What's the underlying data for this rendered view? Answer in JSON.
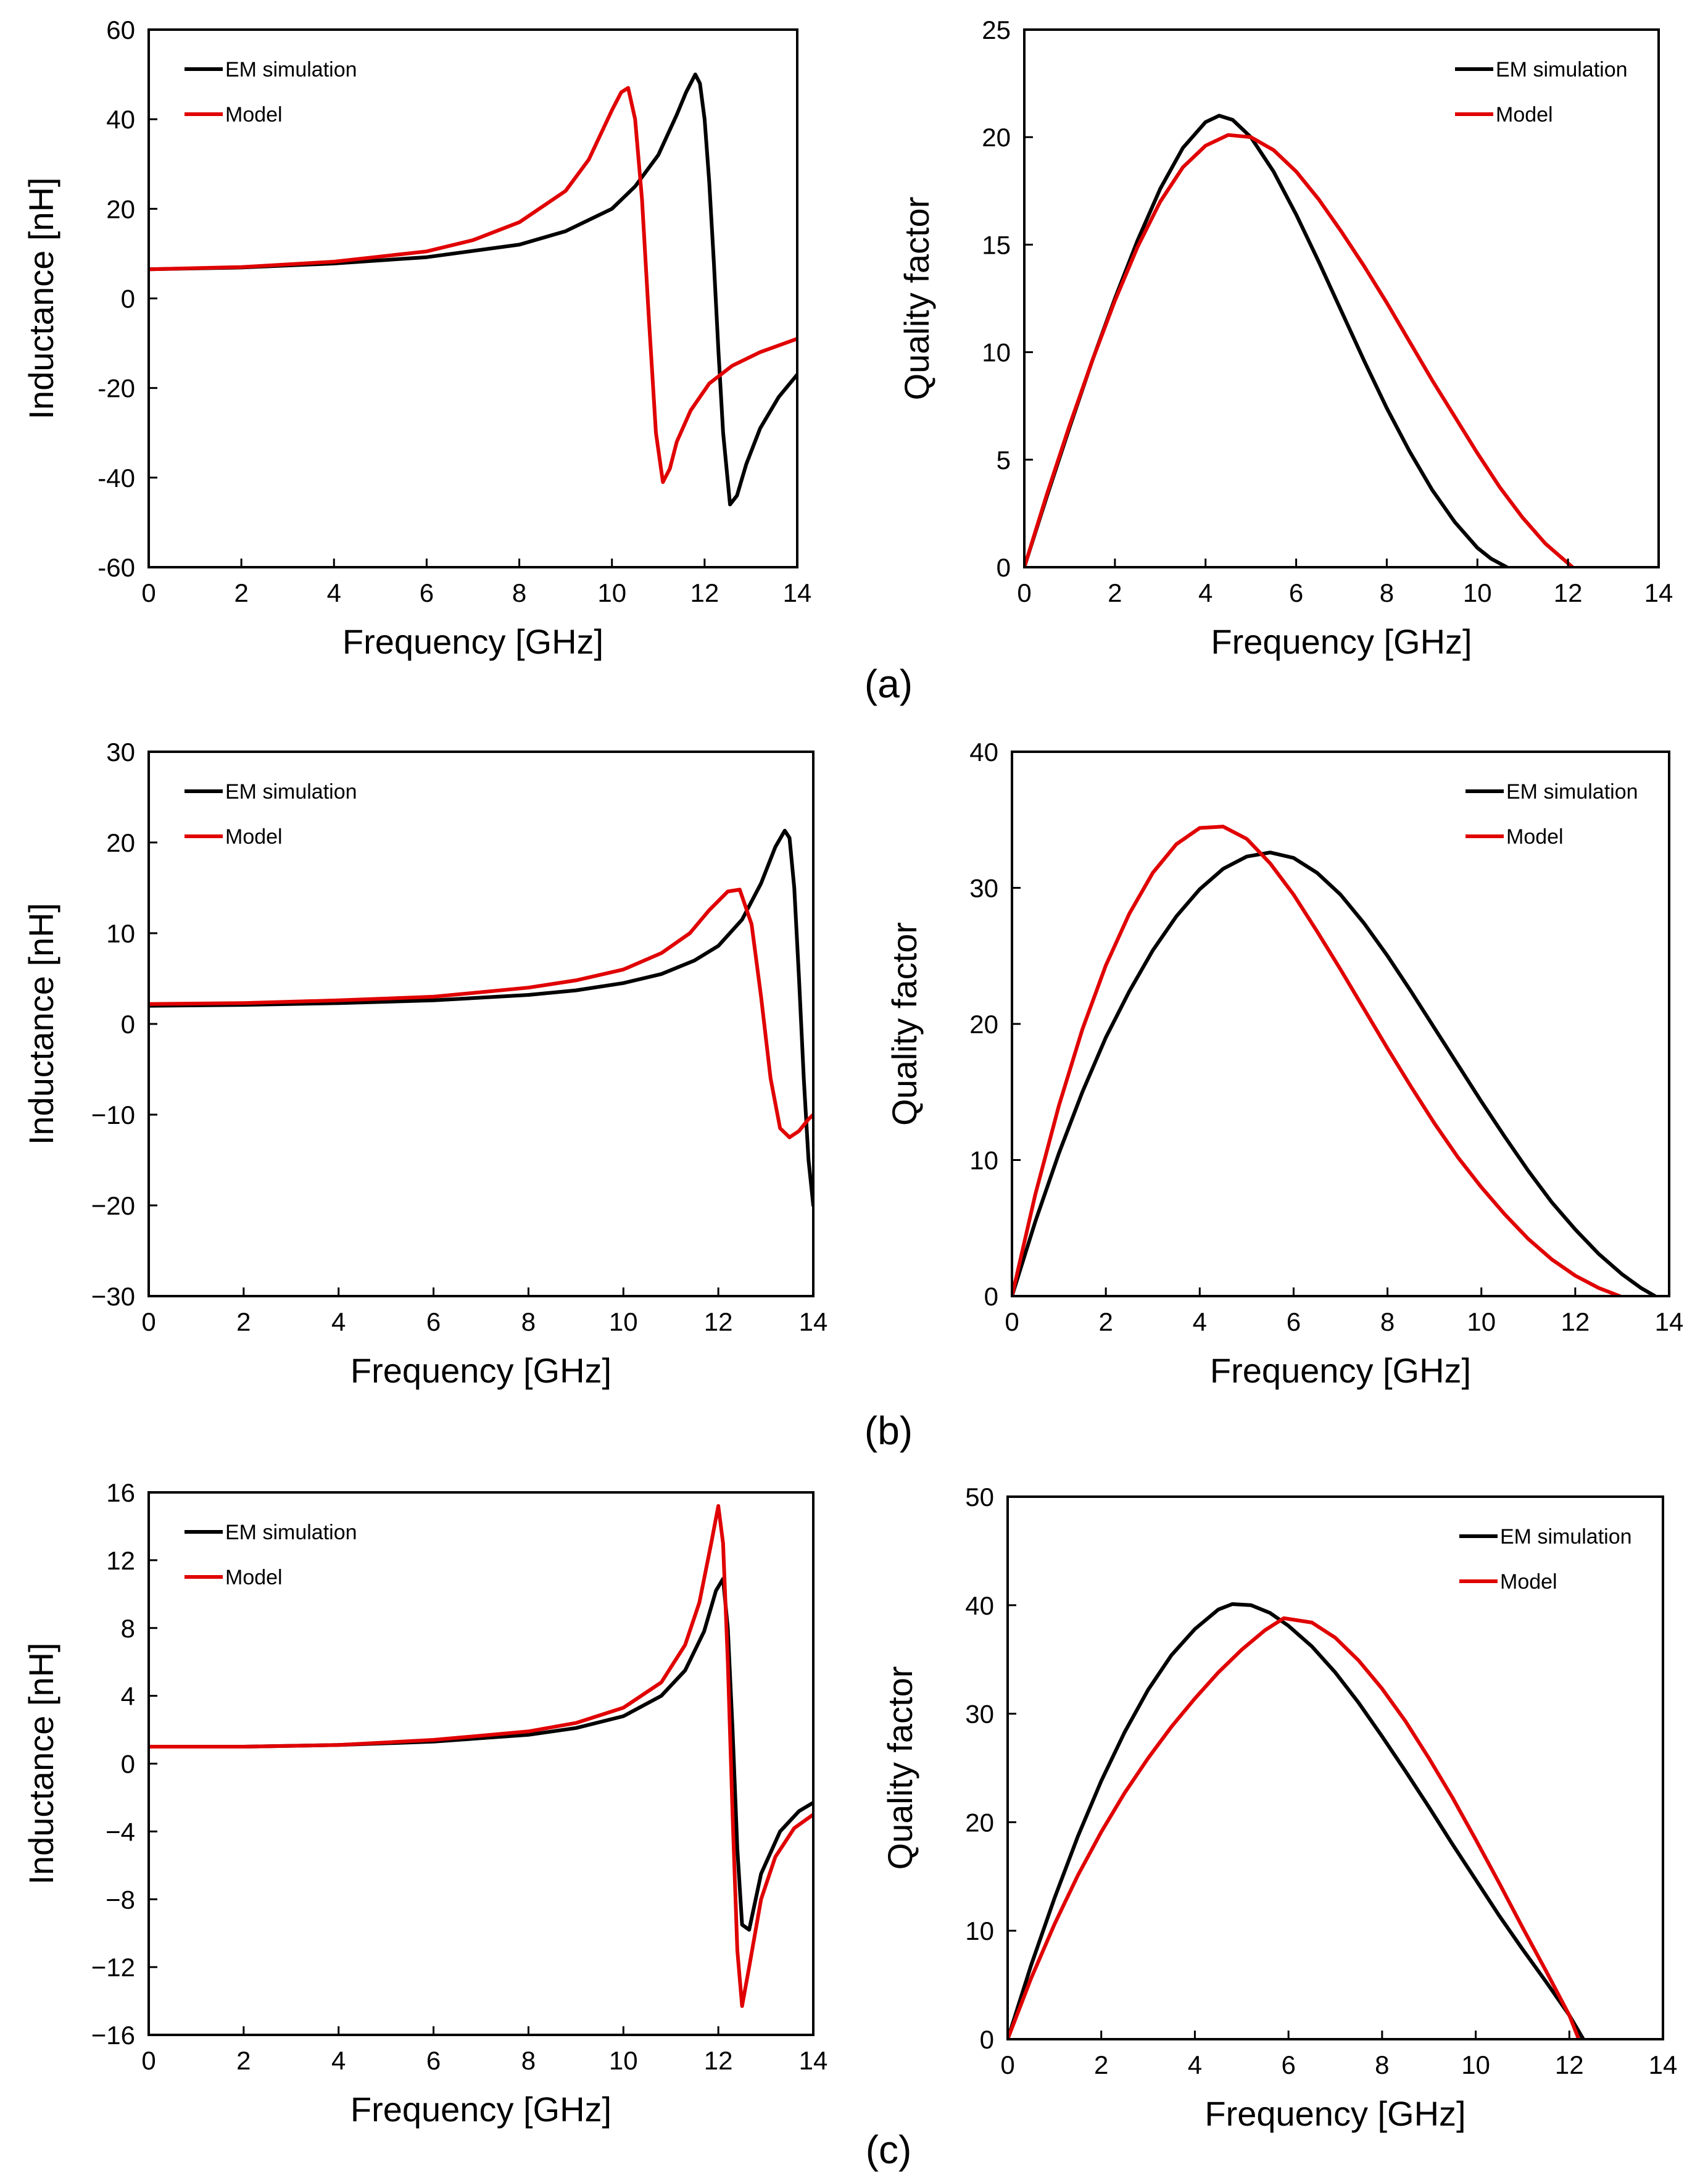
{
  "chart_data": [
    {
      "type": "line",
      "panel": "a",
      "title": "",
      "xlabel": "Frequency [GHz]",
      "ylabel": "Inductance [nH]",
      "xlim": [
        0,
        14
      ],
      "ylim": [
        -60,
        60
      ],
      "xticks": [
        0,
        2,
        4,
        6,
        8,
        10,
        12,
        14
      ],
      "yticks": [
        -60,
        -40,
        -20,
        0,
        20,
        40,
        60
      ],
      "ytick_labels": [
        "-60",
        "-40",
        "-20",
        "0",
        "20",
        "40",
        "60"
      ],
      "legend_position": "top-left",
      "series": [
        {
          "name": "EM simulation",
          "color": "#000000",
          "x": [
            0,
            2,
            4,
            6,
            8,
            9,
            10,
            10.5,
            11,
            11.4,
            11.6,
            11.8,
            11.9,
            12.0,
            12.1,
            12.2,
            12.3,
            12.4,
            12.55,
            12.7,
            12.9,
            13.2,
            13.6,
            14
          ],
          "y": [
            6.5,
            6.9,
            7.8,
            9.2,
            12,
            15,
            20,
            25,
            32,
            41,
            46,
            50,
            48,
            40,
            26,
            8,
            -12,
            -30,
            -46,
            -44,
            -37,
            -29,
            -22,
            -17
          ]
        },
        {
          "name": "Model",
          "color": "#e00000",
          "x": [
            0,
            2,
            4,
            6,
            7,
            8,
            9,
            9.5,
            10,
            10.2,
            10.35,
            10.5,
            10.65,
            10.8,
            10.95,
            11.1,
            11.25,
            11.4,
            11.7,
            12.1,
            12.6,
            13.2,
            14
          ],
          "y": [
            6.5,
            7,
            8.2,
            10.5,
            13,
            17,
            24,
            31,
            42,
            46,
            47,
            40,
            22,
            -5,
            -30,
            -41,
            -38,
            -32,
            -25,
            -19,
            -15,
            -12,
            -9
          ]
        }
      ]
    },
    {
      "type": "line",
      "panel": "a",
      "title": "",
      "xlabel": "Frequency [GHz]",
      "ylabel": "Quality factor",
      "xlim": [
        0,
        14
      ],
      "ylim": [
        0,
        25
      ],
      "xticks": [
        0,
        2,
        4,
        6,
        8,
        10,
        12,
        14
      ],
      "yticks": [
        0,
        5,
        10,
        15,
        20,
        25
      ],
      "ytick_labels": [
        "0",
        "5",
        "10",
        "15",
        "20",
        "25"
      ],
      "legend_position": "top-right",
      "series": [
        {
          "name": "EM simulation",
          "color": "#000000",
          "x": [
            0,
            0.5,
            1,
            1.5,
            2,
            2.5,
            3,
            3.5,
            4,
            4.3,
            4.6,
            5,
            5.5,
            6,
            6.5,
            7,
            7.5,
            8,
            8.5,
            9,
            9.5,
            10,
            10.3,
            10.65
          ],
          "y": [
            0,
            3.3,
            6.5,
            9.6,
            12.5,
            15.2,
            17.6,
            19.5,
            20.7,
            21,
            20.8,
            20,
            18.4,
            16.4,
            14.2,
            11.9,
            9.6,
            7.4,
            5.4,
            3.6,
            2.1,
            0.9,
            0.4,
            0
          ]
        },
        {
          "name": "Model",
          "color": "#e00000",
          "x": [
            0,
            0.5,
            1,
            1.5,
            2,
            2.5,
            3,
            3.5,
            4,
            4.5,
            5,
            5.5,
            6,
            6.5,
            7,
            7.5,
            8,
            8.5,
            9,
            9.5,
            10,
            10.5,
            11,
            11.5,
            12.1
          ],
          "y": [
            0,
            3.4,
            6.6,
            9.6,
            12.4,
            14.9,
            17,
            18.6,
            19.6,
            20.1,
            20,
            19.4,
            18.4,
            17.1,
            15.6,
            14,
            12.3,
            10.5,
            8.7,
            7,
            5.3,
            3.7,
            2.3,
            1.1,
            0
          ]
        }
      ]
    },
    {
      "type": "line",
      "panel": "b",
      "title": "",
      "xlabel": "Frequency [GHz]",
      "ylabel": "Inductance [nH]",
      "xlim": [
        0,
        14
      ],
      "ylim": [
        -30,
        30
      ],
      "xticks": [
        0,
        2,
        4,
        6,
        8,
        10,
        12,
        14
      ],
      "yticks": [
        -30,
        -20,
        -10,
        0,
        10,
        20,
        30
      ],
      "ytick_labels": [
        "−30",
        "−20",
        "−10",
        "0",
        "10",
        "20",
        "30"
      ],
      "legend_position": "top-left",
      "series": [
        {
          "name": "EM simulation",
          "color": "#000000",
          "x": [
            0,
            2,
            4,
            6,
            8,
            9,
            10,
            10.8,
            11.5,
            12,
            12.5,
            12.9,
            13.2,
            13.4,
            13.5,
            13.6,
            13.7,
            13.8,
            13.9,
            14
          ],
          "y": [
            2,
            2.1,
            2.3,
            2.6,
            3.2,
            3.7,
            4.5,
            5.5,
            7,
            8.6,
            11.5,
            15.5,
            19.5,
            21.3,
            20.5,
            15,
            5,
            -6,
            -15,
            -20
          ]
        },
        {
          "name": "Model",
          "color": "#e00000",
          "x": [
            0,
            2,
            4,
            6,
            8,
            9,
            10,
            10.8,
            11.4,
            11.8,
            12.2,
            12.45,
            12.7,
            12.9,
            13.1,
            13.3,
            13.5,
            13.7,
            13.9,
            14
          ],
          "y": [
            2.2,
            2.3,
            2.6,
            3,
            4,
            4.8,
            6,
            7.8,
            10,
            12.5,
            14.6,
            14.8,
            11,
            3,
            -6,
            -11.5,
            -12.5,
            -11.8,
            -10.5,
            -10
          ]
        }
      ]
    },
    {
      "type": "line",
      "panel": "b",
      "title": "",
      "xlabel": "Frequency [GHz]",
      "ylabel": "Quality factor",
      "xlim": [
        0,
        14
      ],
      "ylim": [
        0,
        40
      ],
      "xticks": [
        0,
        2,
        4,
        6,
        8,
        10,
        12,
        14
      ],
      "yticks": [
        0,
        10,
        20,
        30,
        40
      ],
      "ytick_labels": [
        "0",
        "10",
        "20",
        "30",
        "40"
      ],
      "legend_position": "top-right",
      "series": [
        {
          "name": "EM simulation",
          "color": "#000000",
          "x": [
            0,
            0.5,
            1,
            1.5,
            2,
            2.5,
            3,
            3.5,
            4,
            4.5,
            5,
            5.5,
            6,
            6.5,
            7,
            7.5,
            8,
            8.5,
            9,
            9.5,
            10,
            10.5,
            11,
            11.5,
            12,
            12.5,
            13,
            13.4,
            13.7
          ],
          "y": [
            0,
            5.5,
            10.5,
            15,
            19,
            22.4,
            25.4,
            27.9,
            29.9,
            31.4,
            32.3,
            32.6,
            32.2,
            31.1,
            29.5,
            27.4,
            25,
            22.4,
            19.7,
            17,
            14.3,
            11.7,
            9.2,
            6.9,
            4.9,
            3.1,
            1.6,
            0.6,
            0
          ]
        },
        {
          "name": "Model",
          "color": "#e00000",
          "x": [
            0,
            0.5,
            1,
            1.5,
            2,
            2.5,
            3,
            3.5,
            4,
            4.5,
            5,
            5.5,
            6,
            6.5,
            7,
            7.5,
            8,
            8.5,
            9,
            9.5,
            10,
            10.5,
            11,
            11.5,
            12,
            12.5,
            12.95
          ],
          "y": [
            0,
            7.5,
            14,
            19.6,
            24.3,
            28.1,
            31.1,
            33.2,
            34.4,
            34.5,
            33.6,
            31.8,
            29.5,
            26.8,
            24,
            21.1,
            18.2,
            15.4,
            12.7,
            10.2,
            8,
            6,
            4.2,
            2.7,
            1.5,
            0.6,
            0
          ]
        }
      ]
    },
    {
      "type": "line",
      "panel": "c",
      "title": "",
      "xlabel": "Frequency [GHz]",
      "ylabel": "Inductance [nH]",
      "xlim": [
        0,
        14
      ],
      "ylim": [
        -16,
        16
      ],
      "xticks": [
        0,
        2,
        4,
        6,
        8,
        10,
        12,
        14
      ],
      "yticks": [
        -16,
        -12,
        -8,
        -4,
        0,
        4,
        8,
        12,
        16
      ],
      "ytick_labels": [
        "−16",
        "−12",
        "−8",
        "−4",
        "0",
        "4",
        "8",
        "12",
        "16"
      ],
      "legend_position": "top-left",
      "series": [
        {
          "name": "EM simulation",
          "color": "#000000",
          "x": [
            0,
            2,
            4,
            6,
            8,
            9,
            10,
            10.8,
            11.3,
            11.7,
            11.95,
            12.1,
            12.2,
            12.3,
            12.4,
            12.5,
            12.65,
            12.9,
            13.3,
            13.7,
            14
          ],
          "y": [
            1,
            1,
            1.1,
            1.3,
            1.7,
            2.1,
            2.8,
            4,
            5.5,
            7.8,
            10.2,
            10.9,
            8,
            2,
            -5,
            -9.5,
            -9.8,
            -6.5,
            -4,
            -2.8,
            -2.3
          ]
        },
        {
          "name": "Model",
          "color": "#e00000",
          "x": [
            0,
            2,
            4,
            6,
            8,
            9,
            10,
            10.8,
            11.3,
            11.6,
            11.85,
            12.0,
            12.1,
            12.2,
            12.3,
            12.4,
            12.5,
            12.65,
            12.9,
            13.2,
            13.6,
            14
          ],
          "y": [
            1,
            1,
            1.1,
            1.4,
            1.9,
            2.4,
            3.3,
            4.8,
            7,
            9.5,
            13,
            15.2,
            13,
            6,
            -3,
            -11,
            -14.3,
            -12,
            -8,
            -5.5,
            -3.8,
            -3
          ]
        }
      ]
    },
    {
      "type": "line",
      "panel": "c",
      "title": "",
      "xlabel": "Frequency [GHz]",
      "ylabel": "Quality factor",
      "xlim": [
        0,
        14
      ],
      "ylim": [
        0,
        50
      ],
      "xticks": [
        0,
        2,
        4,
        6,
        8,
        10,
        12,
        14
      ],
      "yticks": [
        0,
        10,
        20,
        30,
        40,
        50
      ],
      "ytick_labels": [
        "0",
        "10",
        "20",
        "30",
        "40",
        "50"
      ],
      "legend_position": "top-right",
      "series": [
        {
          "name": "EM simulation",
          "color": "#000000",
          "x": [
            0,
            0.5,
            1,
            1.5,
            2,
            2.5,
            3,
            3.5,
            4,
            4.5,
            4.8,
            5.2,
            5.6,
            6,
            6.5,
            7,
            7.5,
            8,
            8.5,
            9,
            9.5,
            10,
            10.5,
            11,
            11.5,
            12,
            12.3
          ],
          "y": [
            0,
            6.8,
            13,
            18.7,
            23.8,
            28.3,
            32.2,
            35.4,
            37.8,
            39.6,
            40.1,
            40,
            39.3,
            38.1,
            36.2,
            33.8,
            31,
            27.9,
            24.7,
            21.4,
            18,
            14.7,
            11.4,
            8.3,
            5.3,
            2.2,
            0
          ]
        },
        {
          "name": "Model",
          "color": "#e00000",
          "x": [
            0,
            0.5,
            1,
            1.5,
            2,
            2.5,
            3,
            3.5,
            4,
            4.5,
            5,
            5.5,
            5.9,
            6.5,
            7,
            7.5,
            8,
            8.5,
            9,
            9.5,
            10,
            10.5,
            11,
            11.5,
            12,
            12.2
          ],
          "y": [
            0,
            5.6,
            10.6,
            15.1,
            19.1,
            22.7,
            25.9,
            28.8,
            31.4,
            33.8,
            35.9,
            37.7,
            38.8,
            38.4,
            37,
            34.9,
            32.3,
            29.3,
            25.9,
            22.3,
            18.4,
            14.4,
            10.3,
            6.3,
            2.2,
            0
          ]
        }
      ]
    }
  ],
  "panel_labels": [
    "(a)",
    "(b)",
    "(c)"
  ],
  "colors": {
    "em": "#000000",
    "model": "#e00000"
  }
}
